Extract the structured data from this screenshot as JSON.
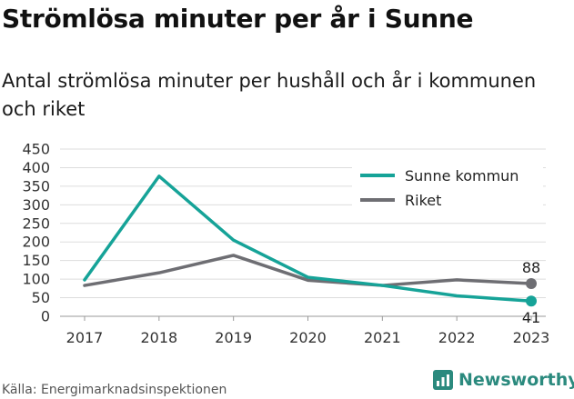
{
  "title": "Strömlösa minuter per år i Sunne",
  "subtitle": "Antal strömlösa minuter per hushåll och år i kommunen och riket",
  "source": "Källa: Energimarknadsinspektionen",
  "brand": "Newsworthy",
  "colors": {
    "sunne": "#16a398",
    "riket": "#6e6e73",
    "grid": "#dddddd",
    "brand": "#2b8a7e"
  },
  "chart_data": {
    "type": "line",
    "x": [
      "2017",
      "2018",
      "2019",
      "2020",
      "2021",
      "2022",
      "2023"
    ],
    "ylim": [
      0,
      450
    ],
    "yticks": [
      0,
      50,
      100,
      150,
      200,
      250,
      300,
      350,
      400,
      450
    ],
    "grid": true,
    "legend_position": "top-right",
    "series": [
      {
        "name": "Sunne kommun",
        "color": "#16a398",
        "values": [
          98,
          377,
          205,
          105,
          83,
          55,
          41
        ],
        "end_label": "41"
      },
      {
        "name": "Riket",
        "color": "#6e6e73",
        "values": [
          83,
          117,
          164,
          97,
          83,
          98,
          88
        ],
        "end_label": "88"
      }
    ]
  }
}
